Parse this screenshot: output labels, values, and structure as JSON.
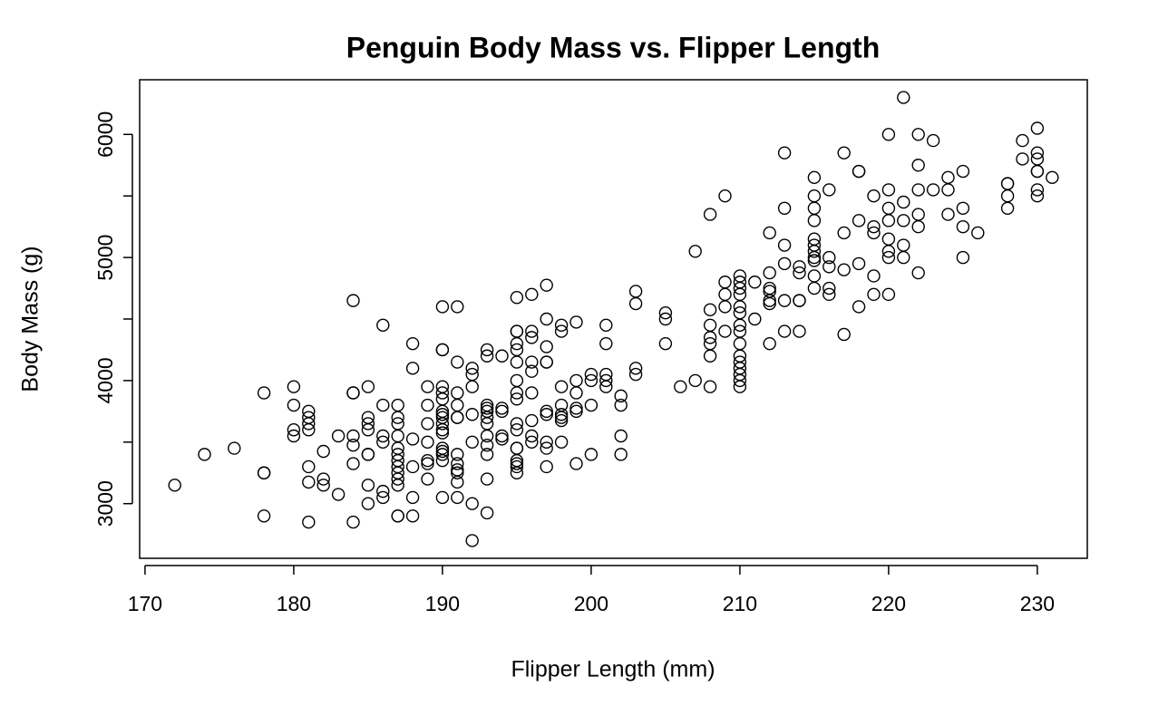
{
  "chart_data": {
    "type": "scatter",
    "title": "Penguin Body Mass vs. Flipper Length",
    "x_label": "Flipper Length (mm)",
    "y_label": "Body Mass (g)",
    "color": "#000000",
    "xlim": [
      169.64,
      233.36
    ],
    "ylim": [
      2556,
      6444
    ],
    "xticks": [
      170,
      180,
      190,
      200,
      210,
      220,
      230
    ],
    "yticks": [
      3000,
      {
        "value": 3500,
        "label": null
      },
      4000,
      {
        "value": 4500,
        "label": null
      },
      5000,
      {
        "value": 5500,
        "label": null
      },
      6000
    ],
    "x": [
      172,
      174,
      176,
      178,
      178,
      178,
      178,
      180,
      180,
      180,
      180,
      181,
      181,
      181,
      181,
      181,
      181,
      181,
      182,
      182,
      182,
      183,
      183,
      184,
      184,
      184,
      184,
      184,
      184,
      184,
      185,
      185,
      185,
      185,
      185,
      185,
      185,
      185,
      186,
      186,
      186,
      186,
      186,
      186,
      187,
      187,
      187,
      187,
      187,
      187,
      187,
      187,
      187,
      187,
      187,
      187,
      187,
      188,
      188,
      188,
      188,
      188,
      188,
      189,
      189,
      189,
      189,
      189,
      189,
      189,
      190,
      190,
      190,
      190,
      190,
      190,
      190,
      190,
      190,
      190,
      190,
      190,
      190,
      190,
      190,
      190,
      190,
      191,
      191,
      191,
      191,
      191,
      191,
      191,
      191,
      191,
      191,
      191,
      191,
      192,
      192,
      192,
      192,
      192,
      192,
      192,
      193,
      193,
      193,
      193,
      193,
      193,
      193,
      193,
      193,
      193,
      193,
      193,
      194,
      194,
      194,
      194,
      194,
      195,
      195,
      195,
      195,
      195,
      195,
      195,
      195,
      195,
      195,
      195,
      195,
      195,
      195,
      195,
      195,
      195,
      196,
      196,
      196,
      196,
      196,
      196,
      196,
      196,
      196,
      197,
      197,
      197,
      197,
      197,
      197,
      197,
      197,
      197,
      197,
      198,
      198,
      198,
      198,
      198,
      198,
      198,
      198,
      199,
      199,
      199,
      199,
      199,
      199,
      200,
      200,
      200,
      200,
      201,
      201,
      201,
      201,
      201,
      202,
      202,
      202,
      202,
      203,
      203,
      203,
      203,
      205,
      205,
      205,
      206,
      207,
      207,
      208,
      208,
      208,
      208,
      208,
      208,
      208,
      209,
      209,
      209,
      209,
      209,
      210,
      210,
      210,
      210,
      210,
      210,
      210,
      210,
      210,
      210,
      210,
      210,
      210,
      210,
      210,
      211,
      211,
      212,
      212,
      212,
      212,
      212,
      212,
      212,
      213,
      213,
      213,
      213,
      213,
      213,
      214,
      214,
      214,
      214,
      214,
      215,
      215,
      215,
      215,
      215,
      215,
      215,
      215,
      215,
      215,
      215,
      216,
      216,
      216,
      216,
      216,
      217,
      217,
      217,
      217,
      218,
      218,
      218,
      218,
      218,
      219,
      219,
      219,
      219,
      219,
      220,
      220,
      220,
      220,
      220,
      220,
      220,
      220,
      221,
      221,
      221,
      221,
      221,
      222,
      222,
      222,
      222,
      222,
      222,
      223,
      223,
      224,
      224,
      224,
      225,
      225,
      225,
      225,
      226,
      228,
      228,
      228,
      228,
      229,
      229,
      230,
      230,
      230,
      230,
      230,
      230,
      230,
      231
    ],
    "values": [
      3150,
      3400,
      3450,
      3900,
      3250,
      3250,
      2900,
      3950,
      3800,
      3600,
      3550,
      3750,
      3700,
      3650,
      3600,
      3300,
      3175,
      2850,
      3425,
      3200,
      3150,
      3550,
      3075,
      4650,
      3900,
      3900,
      3550,
      3475,
      3325,
      2850,
      3950,
      3700,
      3650,
      3600,
      3400,
      3400,
      3150,
      3000,
      4450,
      3800,
      3550,
      3500,
      3100,
      3050,
      3800,
      3700,
      3650,
      3550,
      3450,
      3400,
      3350,
      3300,
      3250,
      3200,
      3150,
      2900,
      2900,
      4300,
      4100,
      3525,
      3300,
      3050,
      2900,
      3950,
      3800,
      3650,
      3500,
      3350,
      3325,
      3200,
      4600,
      4250,
      4250,
      3950,
      3900,
      3850,
      3750,
      3725,
      3700,
      3650,
      3600,
      3575,
      3450,
      3425,
      3400,
      3350,
      3050,
      4600,
      4150,
      3900,
      3800,
      3700,
      3700,
      3400,
      3325,
      3275,
      3250,
      3175,
      3050,
      4100,
      4050,
      3950,
      3725,
      3500,
      3000,
      2700,
      4250,
      4200,
      3800,
      3775,
      3750,
      3700,
      3650,
      3550,
      3475,
      3400,
      3200,
      2925,
      4200,
      3775,
      3750,
      3550,
      3525,
      4675,
      4400,
      4400,
      4300,
      4250,
      4150,
      4000,
      3900,
      3850,
      3650,
      3600,
      3450,
      3450,
      3350,
      3325,
      3300,
      3250,
      4700,
      4400,
      4350,
      4150,
      4075,
      3900,
      3675,
      3550,
      3500,
      4775,
      4500,
      4275,
      4150,
      4150,
      3750,
      3725,
      3500,
      3450,
      3300,
      4450,
      4400,
      3950,
      3800,
      3725,
      3700,
      3675,
      3500,
      4475,
      4000,
      3900,
      3775,
      3750,
      3325,
      4050,
      4000,
      3800,
      3400,
      4450,
      4300,
      4050,
      4000,
      3950,
      3875,
      3800,
      3550,
      3400,
      4725,
      4625,
      4100,
      4050,
      4550,
      4500,
      4300,
      3950,
      5050,
      4000,
      5350,
      4575,
      4450,
      4350,
      4300,
      4200,
      3950,
      5500,
      4800,
      4700,
      4600,
      4400,
      4850,
      4800,
      4750,
      4700,
      4600,
      4550,
      4450,
      4400,
      4300,
      4200,
      4150,
      4100,
      4050,
      4000,
      3950,
      4800,
      4500,
      5200,
      4875,
      4750,
      4725,
      4650,
      4625,
      4300,
      5850,
      5400,
      5100,
      4950,
      4650,
      4400,
      4925,
      4875,
      4650,
      4650,
      4400,
      5650,
      5500,
      5400,
      5300,
      5150,
      5100,
      5050,
      5000,
      4975,
      4850,
      4750,
      5550,
      5000,
      4925,
      4750,
      4700,
      5850,
      5200,
      4900,
      4375,
      5700,
      5700,
      5300,
      4950,
      4600,
      5500,
      5250,
      5200,
      4850,
      4700,
      6000,
      5550,
      5400,
      5300,
      5150,
      5050,
      5000,
      4700,
      6300,
      5450,
      5300,
      5100,
      5000,
      6000,
      5750,
      5550,
      5350,
      5250,
      4875,
      5950,
      5550,
      5650,
      5550,
      5350,
      5700,
      5400,
      5250,
      5000,
      5200,
      5600,
      5600,
      5500,
      5400,
      5950,
      5800,
      6050,
      5850,
      5800,
      5700,
      5700,
      5550,
      5500,
      5650
    ]
  }
}
